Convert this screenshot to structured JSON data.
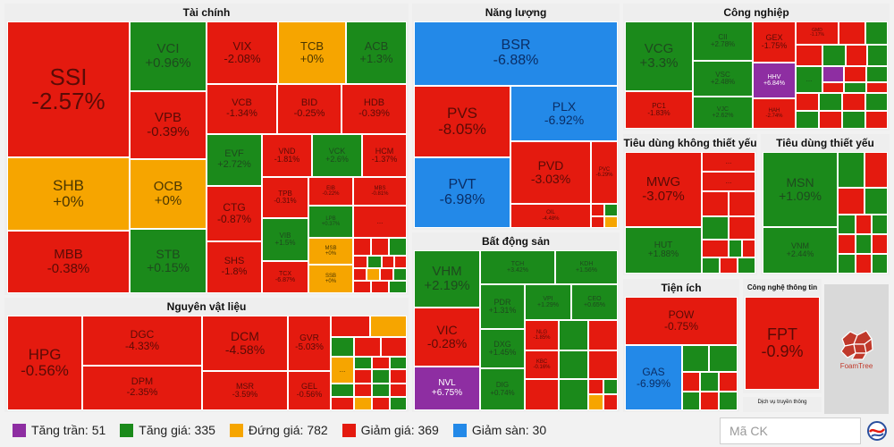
{
  "sectors": {
    "tai_chinh": "Tài chính",
    "nang_luong": "Năng lượng",
    "cong_nghiep": "Công nghiệp",
    "nguyen_vat_lieu": "Nguyên vật liệu",
    "bat_dong_san": "Bất động sản",
    "tieu_dung_ktyeu": "Tiêu dùng không thiết yếu",
    "tieu_dung_tyeu": "Tiêu dùng thiết yếu",
    "tien_ich": "Tiện ích",
    "cong_nghe": "Công nghệ thông tin",
    "dich_vu_truyen_thong": "Dịch vụ truyền thông"
  },
  "tiles": {
    "SSI": {
      "t": "SSI",
      "c": "-2.57%"
    },
    "SHB": {
      "t": "SHB",
      "c": "+0%"
    },
    "MBB": {
      "t": "MBB",
      "c": "-0.38%"
    },
    "VCI": {
      "t": "VCI",
      "c": "+0.96%"
    },
    "VPB": {
      "t": "VPB",
      "c": "-0.39%"
    },
    "OCB": {
      "t": "OCB",
      "c": "+0%"
    },
    "STB": {
      "t": "STB",
      "c": "+0.15%"
    },
    "VIX": {
      "t": "VIX",
      "c": "-2.08%"
    },
    "TCB": {
      "t": "TCB",
      "c": "+0%"
    },
    "ACB": {
      "t": "ACB",
      "c": "+1.3%"
    },
    "VCB": {
      "t": "VCB",
      "c": "-1.34%"
    },
    "BID": {
      "t": "BID",
      "c": "-0.25%"
    },
    "HDB": {
      "t": "HDB",
      "c": "-0.39%"
    },
    "EVF": {
      "t": "EVF",
      "c": "+2.72%"
    },
    "VND": {
      "t": "VND",
      "c": "-1.81%"
    },
    "VCK": {
      "t": "VCK",
      "c": "+2.6%"
    },
    "HCM": {
      "t": "HCM",
      "c": "-1.37%"
    },
    "CTG": {
      "t": "CTG",
      "c": "-0.87%"
    },
    "TPB": {
      "t": "TPB",
      "c": "-0.31%"
    },
    "EIB": {
      "t": "EIB",
      "c": "-0.22%"
    },
    "MBS": {
      "t": "MBS",
      "c": "-0.81%"
    },
    "VIB": {
      "t": "VIB",
      "c": "+1.5%"
    },
    "LPB": {
      "t": "LPB",
      "c": "+0.37%"
    },
    "SHS": {
      "t": "SHS",
      "c": "-1.8%"
    },
    "TCX": {
      "t": "TCX",
      "c": "-6.87%"
    },
    "MSB": {
      "t": "MSB",
      "c": "+0%"
    },
    "SSB": {
      "t": "SSB",
      "c": "+0%"
    },
    "BSR": {
      "t": "BSR",
      "c": "-6.88%"
    },
    "PVS": {
      "t": "PVS",
      "c": "-8.05%"
    },
    "PLX": {
      "t": "PLX",
      "c": "-6.92%"
    },
    "PVT": {
      "t": "PVT",
      "c": "-6.98%"
    },
    "PVD": {
      "t": "PVD",
      "c": "-3.03%"
    },
    "PVC": {
      "t": "PVC",
      "c": "-6.29%"
    },
    "OIL": {
      "t": "OIL",
      "c": "-4.48%"
    },
    "VCG": {
      "t": "VCG",
      "c": "+3.3%"
    },
    "CII": {
      "t": "CII",
      "c": "+2.78%"
    },
    "GEX": {
      "t": "GEX",
      "c": "-1.75%"
    },
    "GMD": {
      "t": "GMD",
      "c": "-1.17%"
    },
    "VSC": {
      "t": "VSC",
      "c": "+2.48%"
    },
    "HHV": {
      "t": "HHV",
      "c": "+6.84%"
    },
    "PC1": {
      "t": "PC1",
      "c": "-1.83%"
    },
    "VJC": {
      "t": "VJC",
      "c": "+2.62%"
    },
    "HAH": {
      "t": "HAH",
      "c": "-2.74%"
    },
    "MWG": {
      "t": "MWG",
      "c": "-3.07%"
    },
    "HUT": {
      "t": "HUT",
      "c": "+1.88%"
    },
    "MSN": {
      "t": "MSN",
      "c": "+1.09%"
    },
    "VNM": {
      "t": "VNM",
      "c": "+2.44%"
    },
    "HPG": {
      "t": "HPG",
      "c": "-0.56%"
    },
    "DGC": {
      "t": "DGC",
      "c": "-4.33%"
    },
    "DPM": {
      "t": "DPM",
      "c": "-2.35%"
    },
    "DCM": {
      "t": "DCM",
      "c": "-4.58%"
    },
    "MSR": {
      "t": "MSR",
      "c": "-3.59%"
    },
    "GVR": {
      "t": "GVR",
      "c": "-5.03%"
    },
    "GEL": {
      "t": "GEL",
      "c": "-0.56%"
    },
    "VHM": {
      "t": "VHM",
      "c": "+2.19%"
    },
    "VIC": {
      "t": "VIC",
      "c": "-0.28%"
    },
    "NVL": {
      "t": "NVL",
      "c": "+6.75%"
    },
    "TCH": {
      "t": "TCH",
      "c": "+3.42%"
    },
    "KDH": {
      "t": "KDH",
      "c": "+1.56%"
    },
    "PDR": {
      "t": "PDR",
      "c": "+1.31%"
    },
    "VPI": {
      "t": "VPI",
      "c": "+1.29%"
    },
    "CEO": {
      "t": "CEO",
      "c": "+0.65%"
    },
    "DXG": {
      "t": "DXG",
      "c": "+1.45%"
    },
    "NLG": {
      "t": "NLG",
      "c": "-1.85%"
    },
    "DIG": {
      "t": "DIG",
      "c": "+0.74%"
    },
    "KBC": {
      "t": "KBC",
      "c": "-0.16%"
    },
    "POW": {
      "t": "POW",
      "c": "-0.75%"
    },
    "GAS": {
      "t": "GAS",
      "c": "-6.99%"
    },
    "FPT": {
      "t": "FPT",
      "c": "-0.9%"
    },
    "ellipsis": "..."
  },
  "legend": {
    "ceil": "Tăng trần: 51",
    "up": "Tăng giá: 335",
    "flat": "Đứng giá: 782",
    "down": "Giảm giá: 369",
    "floor": "Giảm sàn: 30"
  },
  "colors": {
    "ceil": "#8e2ea2",
    "up": "#1b8a1b",
    "flat": "#f6a500",
    "down": "#e41a0f",
    "floor": "#2389e8"
  },
  "search": {
    "placeholder": "Mã CK"
  },
  "brand": {
    "logo": "FoamTree"
  }
}
